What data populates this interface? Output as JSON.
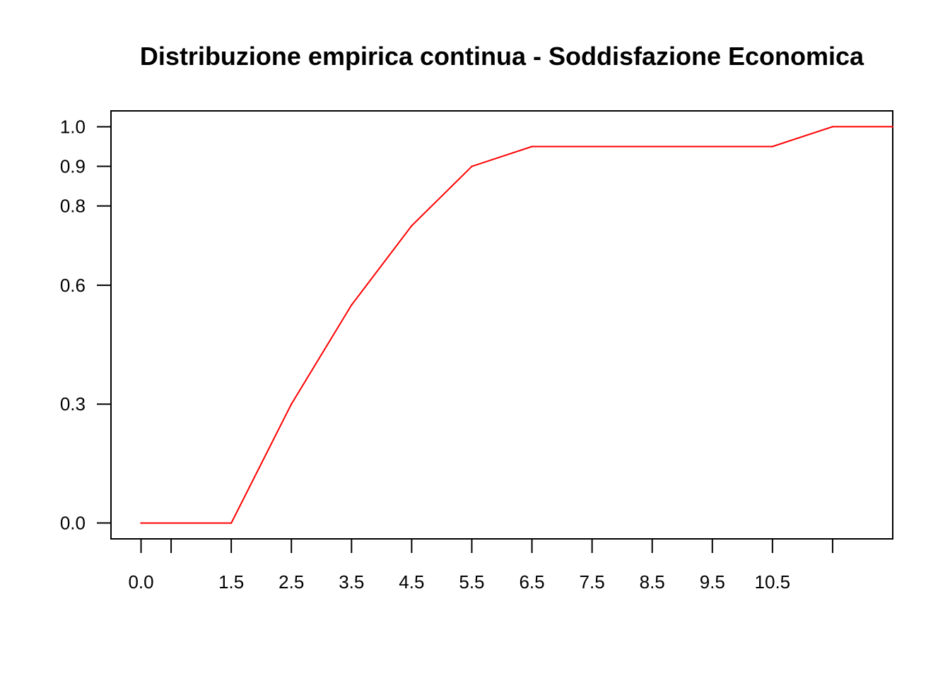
{
  "chart_data": {
    "type": "line",
    "title": "Distribuzione empirica continua - Soddisfazione Economica",
    "xlabel": "",
    "ylabel": "",
    "x": [
      0.0,
      1.5,
      2.5,
      3.5,
      4.5,
      5.5,
      6.5,
      10.5,
      11.5,
      12.5
    ],
    "y": [
      0.0,
      0.0,
      0.3,
      0.55,
      0.75,
      0.9,
      0.95,
      0.95,
      1.0,
      1.0
    ],
    "xlim": [
      -0.5,
      12.5
    ],
    "ylim": [
      -0.04,
      1.04
    ],
    "x_ticks": [
      0.0,
      0.5,
      1.5,
      2.5,
      3.5,
      4.5,
      5.5,
      6.5,
      7.5,
      8.5,
      9.5,
      10.5,
      11.5
    ],
    "x_tick_labels": [
      "0.0",
      "",
      "1.5",
      "2.5",
      "3.5",
      "4.5",
      "5.5",
      "6.5",
      "7.5",
      "8.5",
      "9.5",
      "10.5",
      ""
    ],
    "y_ticks": [
      0.0,
      0.3,
      0.6,
      0.8,
      0.9,
      1.0
    ],
    "y_tick_labels": [
      "0.0",
      "0.3",
      "0.6",
      "0.8",
      "0.9",
      "1.0"
    ],
    "line_color": "#ff0000",
    "grid": false,
    "legend": "none"
  }
}
